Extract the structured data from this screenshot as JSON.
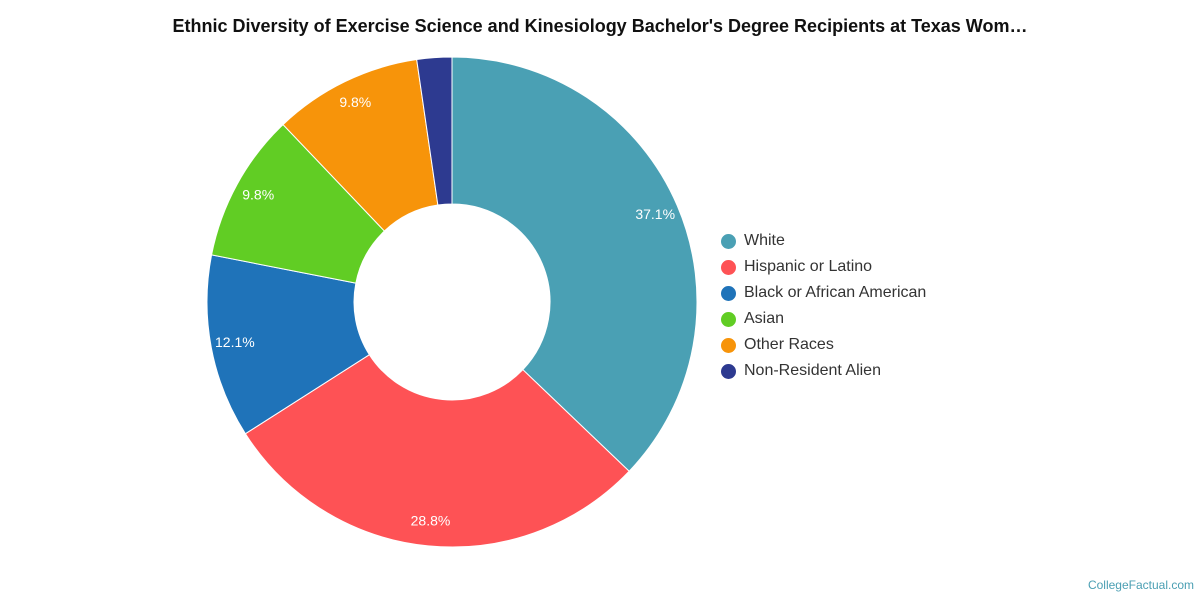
{
  "chart_data": {
    "type": "pie",
    "title": "Ethnic Diversity of Exercise Science and Kinesiology Bachelor's Degree Recipients at Texas Wom…",
    "categories": [
      "White",
      "Hispanic or Latino",
      "Black or African American",
      "Asian",
      "Other Races",
      "Non-Resident Alien"
    ],
    "values": [
      37.1,
      28.8,
      12.1,
      9.8,
      9.8,
      2.3
    ],
    "data_labels": [
      "37.1%",
      "28.8%",
      "12.1%",
      "9.8%",
      "9.8%",
      ""
    ],
    "colors": [
      "#4aa0b4",
      "#fe5255",
      "#1f73b9",
      "#61cd24",
      "#f7940a",
      "#2d3a90"
    ],
    "donut": true,
    "legend_placement": "right"
  },
  "credit": "CollegeFactual.com"
}
